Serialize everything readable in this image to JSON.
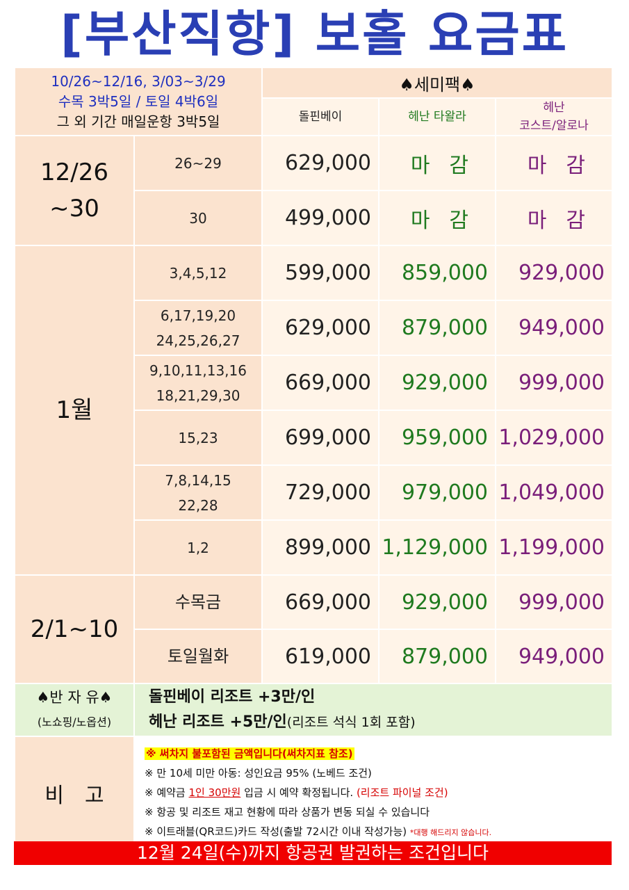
{
  "title": "[부산직항] 보홀 요금표",
  "header": {
    "schedule_line1": "10/26~12/16, 3/03~3/29",
    "schedule_line2": "수목 3박5일 / 토일 4박6일",
    "schedule_line3": "그 외 기간 매일운항 3박5일",
    "package_label": "♠세미팩♠",
    "hotels": {
      "h1": "돌핀베이",
      "h2": "헤난 타왈라",
      "h3_line1": "헤난",
      "h3_line2": "코스트/알로나"
    }
  },
  "groups": {
    "g1": "12/26",
    "g1b": "~30",
    "g2": "1월",
    "g3": "2/1~10"
  },
  "rows": [
    {
      "dates1": "26~29",
      "dates2": "",
      "p1": "629,000",
      "p2": "마감",
      "p3": "마감"
    },
    {
      "dates1": "30",
      "dates2": "",
      "p1": "499,000",
      "p2": "마감",
      "p3": "마감"
    },
    {
      "dates1": "3,4,5,12",
      "dates2": "",
      "p1": "599,000",
      "p2": "859,000",
      "p3": "929,000"
    },
    {
      "dates1": "6,17,19,20",
      "dates2": "24,25,26,27",
      "p1": "629,000",
      "p2": "879,000",
      "p3": "949,000"
    },
    {
      "dates1": "9,10,11,13,16",
      "dates2": "18,21,29,30",
      "p1": "669,000",
      "p2": "929,000",
      "p3": "999,000"
    },
    {
      "dates1": "15,23",
      "dates2": "",
      "p1": "699,000",
      "p2": "959,000",
      "p3": "1,029,000"
    },
    {
      "dates1": "7,8,14,15",
      "dates2": "22,28",
      "p1": "729,000",
      "p2": "979,000",
      "p3": "1,049,000"
    },
    {
      "dates1": "1,2",
      "dates2": "",
      "p1": "899,000",
      "p2": "1,129,000",
      "p3": "1,199,000"
    },
    {
      "dates1": "수목금",
      "dates2": "",
      "p1": "669,000",
      "p2": "929,000",
      "p3": "999,000"
    },
    {
      "dates1": "토일월화",
      "dates2": "",
      "p1": "619,000",
      "p2": "879,000",
      "p3": "949,000"
    }
  ],
  "halfday": {
    "label": "♠반 자 유♠",
    "sublabel": "(노쇼핑/노옵션)",
    "line1": "돌핀베이 리조트 +3만/인",
    "line2_main": "헤난 리조트 +5만/인",
    "line2_note": "(리조트 석식 1회 포함)"
  },
  "notes": {
    "label": "비고",
    "n1": "※ 써차지 불포함된 금액입니다(써차지표 참조)",
    "n2": "※ 만 10세 미만 아동: 성인요금 95% (노베드 조건)",
    "n3a": "※ 예약금 ",
    "n3b": "1인 30만원",
    "n3c": " 입금 시 예약 확정됩니다. ",
    "n3d": "(리조트 파이널 조건)",
    "n4": "※ 항공 및 리조트 재고 현황에 따라 상품가 변동 되실 수 있습니다",
    "n5": "※ 이트래블(QR코드)카드 작성(출발 72시간 이내 작성가능)",
    "n5b": "*대행 해드리지 않습니다."
  },
  "footer": "12월 24일(수)까지 항공권 발권하는 조건입니다",
  "colors": {
    "title": "#2a3fb4",
    "green": "#1f7a1f",
    "purple": "#7a1f7a",
    "footer": "#f00000"
  }
}
